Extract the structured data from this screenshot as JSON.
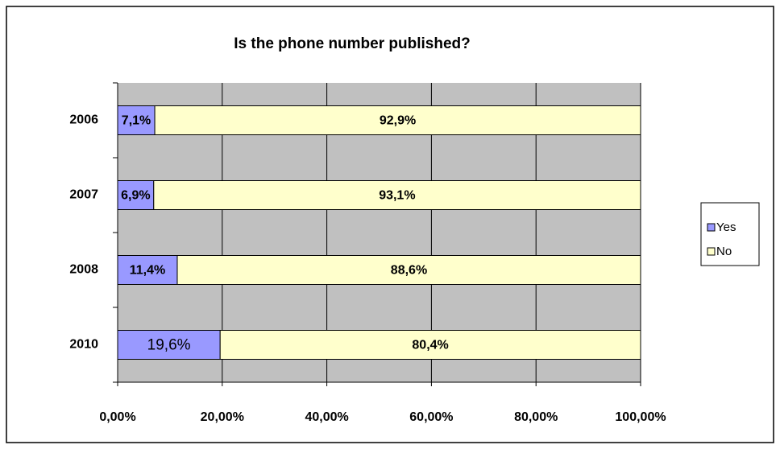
{
  "chart_data": {
    "type": "stacked_barh",
    "title": "Is the phone number published?",
    "categories": [
      "2006",
      "2007",
      "2008",
      "2010"
    ],
    "series": [
      {
        "name": "Yes",
        "color": "#9999ff",
        "values": [
          7.1,
          6.9,
          11.4,
          19.6
        ],
        "value_labels": [
          "7,1%",
          "6,9%",
          "11,4%",
          "19,6%"
        ]
      },
      {
        "name": "No",
        "color": "#ffffcc",
        "values": [
          92.9,
          93.1,
          88.6,
          80.4
        ],
        "value_labels": [
          "92,9%",
          "93,1%",
          "88,6%",
          "80,4%"
        ]
      }
    ],
    "xlim": [
      0,
      100
    ],
    "xticks": [
      {
        "value": 0,
        "label": "0,00%"
      },
      {
        "value": 20,
        "label": "20,00%"
      },
      {
        "value": 40,
        "label": "40,00%"
      },
      {
        "value": 60,
        "label": "60,00%"
      },
      {
        "value": 80,
        "label": "80,00%"
      },
      {
        "value": 100,
        "label": "100,00%"
      }
    ],
    "grid": true,
    "legend": "right",
    "background": "#c0c0c0"
  }
}
